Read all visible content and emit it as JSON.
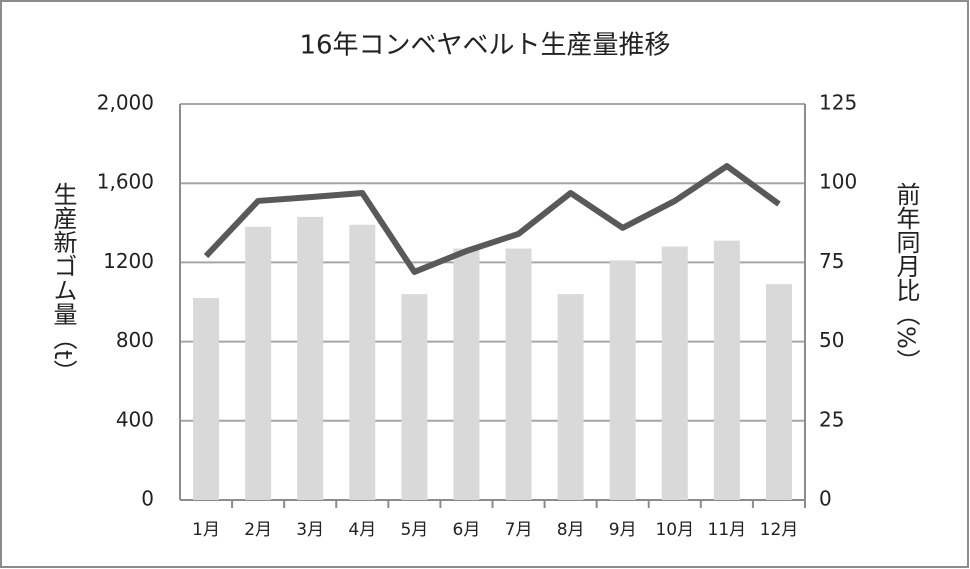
{
  "chart_data": {
    "type": "bar-line",
    "title": "16年コンベヤベルト生産量推移",
    "y_label": "生産新ゴム量（t）",
    "y2_label": "前年同月比（%）",
    "categories": [
      "1月",
      "2月",
      "3月",
      "4月",
      "5月",
      "6月",
      "7月",
      "8月",
      "9月",
      "10月",
      "11月",
      "12月"
    ],
    "series": [
      {
        "type": "bar",
        "color": "#d9d9d9",
        "values": [
          1020,
          1380,
          1430,
          1390,
          1040,
          1270,
          1270,
          1040,
          1210,
          1280,
          1310,
          1090
        ]
      },
      {
        "type": "line",
        "axis": "y2",
        "color": "#595959",
        "values": [
          77,
          94.4,
          95.6,
          96.9,
          72,
          78.6,
          84,
          96.9,
          85.9,
          94.4,
          105.4,
          93.4
        ]
      }
    ],
    "ylim": [
      0,
      2000
    ],
    "yticks": [
      0,
      400,
      800,
      1200,
      {
        "value": 1600,
        "label": "1,600"
      },
      {
        "value": 2000,
        "label": "2,000"
      }
    ],
    "y2lim": [
      0,
      125
    ],
    "y2ticks": [
      0,
      25,
      50,
      75,
      100,
      125
    ],
    "grid": true
  }
}
